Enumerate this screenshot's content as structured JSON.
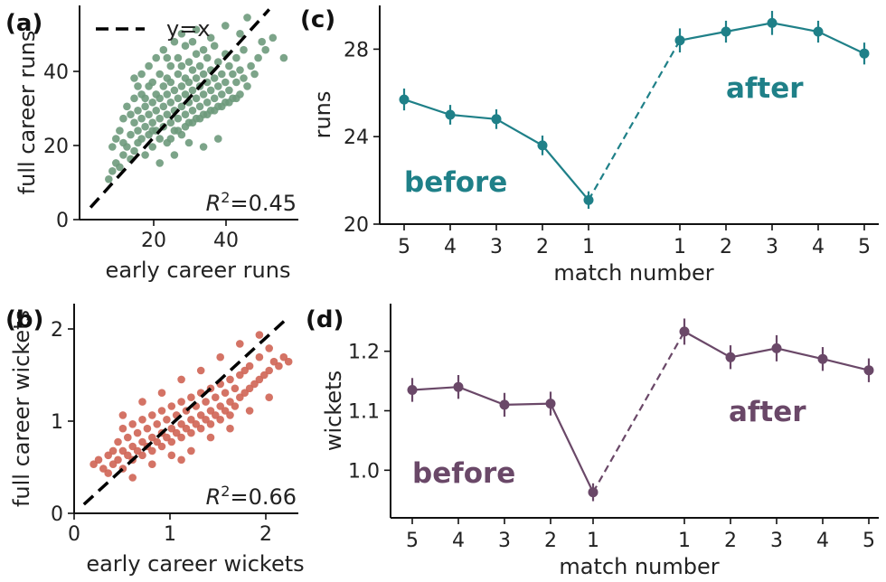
{
  "chart_data": [
    {
      "panel": "(a)",
      "type": "scatter",
      "xlabel": "early career runs",
      "ylabel": "full career runs",
      "xlim": [
        0,
        60
      ],
      "ylim": [
        0,
        53
      ],
      "xticks": [
        "20",
        "40"
      ],
      "yticks": [
        "0",
        "20",
        "40"
      ],
      "color": "#6e9a7c",
      "reference_line": {
        "label": "y=x",
        "style": "dashed",
        "color": "#000000",
        "from": [
          3,
          3
        ],
        "to": [
          52,
          52
        ]
      },
      "legend_position": "top-left",
      "annotation": {
        "prefix": "R",
        "sup": "2",
        "value": "=0.45"
      },
      "points": [
        [
          8,
          10
        ],
        [
          9,
          12
        ],
        [
          9,
          18
        ],
        [
          10,
          14
        ],
        [
          10,
          20
        ],
        [
          11,
          13
        ],
        [
          11,
          22
        ],
        [
          12,
          16
        ],
        [
          12,
          25
        ],
        [
          12,
          19
        ],
        [
          13,
          18
        ],
        [
          13,
          28
        ],
        [
          14,
          15
        ],
        [
          14,
          21
        ],
        [
          14,
          26
        ],
        [
          15,
          17
        ],
        [
          15,
          24
        ],
        [
          15,
          30
        ],
        [
          15,
          35
        ],
        [
          16,
          19
        ],
        [
          16,
          22
        ],
        [
          16,
          27
        ],
        [
          17,
          20
        ],
        [
          17,
          25
        ],
        [
          17,
          31
        ],
        [
          17,
          36
        ],
        [
          18,
          16
        ],
        [
          18,
          23
        ],
        [
          18,
          28
        ],
        [
          19,
          21
        ],
        [
          19,
          26
        ],
        [
          19,
          33
        ],
        [
          19,
          38
        ],
        [
          20,
          18
        ],
        [
          20,
          24
        ],
        [
          20,
          29
        ],
        [
          20,
          34
        ],
        [
          21,
          22
        ],
        [
          21,
          27
        ],
        [
          21,
          31
        ],
        [
          21,
          40
        ],
        [
          22,
          20
        ],
        [
          22,
          25
        ],
        [
          22,
          30
        ],
        [
          22,
          36
        ],
        [
          23,
          23
        ],
        [
          23,
          28
        ],
        [
          23,
          33
        ],
        [
          23,
          42
        ],
        [
          24,
          19
        ],
        [
          24,
          26
        ],
        [
          24,
          31
        ],
        [
          24,
          35
        ],
        [
          25,
          24
        ],
        [
          25,
          29
        ],
        [
          25,
          34
        ],
        [
          25,
          38
        ],
        [
          26,
          22
        ],
        [
          26,
          27
        ],
        [
          26,
          32
        ],
        [
          26,
          44
        ],
        [
          27,
          25
        ],
        [
          27,
          30
        ],
        [
          27,
          36
        ],
        [
          27,
          40
        ],
        [
          28,
          21
        ],
        [
          28,
          28
        ],
        [
          28,
          33
        ],
        [
          28,
          38
        ],
        [
          29,
          26
        ],
        [
          29,
          31
        ],
        [
          29,
          35
        ],
        [
          29,
          43
        ],
        [
          30,
          24
        ],
        [
          30,
          29
        ],
        [
          30,
          34
        ],
        [
          30,
          39
        ],
        [
          31,
          27
        ],
        [
          31,
          32
        ],
        [
          31,
          37
        ],
        [
          31,
          44
        ],
        [
          32,
          25
        ],
        [
          32,
          30
        ],
        [
          32,
          35
        ],
        [
          32,
          41
        ],
        [
          33,
          28
        ],
        [
          33,
          33
        ],
        [
          33,
          38
        ],
        [
          34,
          26
        ],
        [
          34,
          31
        ],
        [
          34,
          36
        ],
        [
          34,
          42
        ],
        [
          35,
          29
        ],
        [
          35,
          34
        ],
        [
          35,
          40
        ],
        [
          36,
          27
        ],
        [
          36,
          32
        ],
        [
          36,
          37
        ],
        [
          37,
          30
        ],
        [
          37,
          35
        ],
        [
          37,
          43
        ],
        [
          38,
          28
        ],
        [
          38,
          33
        ],
        [
          38,
          39
        ],
        [
          39,
          31
        ],
        [
          39,
          36
        ],
        [
          40,
          29
        ],
        [
          40,
          34
        ],
        [
          40,
          41
        ],
        [
          41,
          32
        ],
        [
          41,
          38
        ],
        [
          42,
          30
        ],
        [
          42,
          36
        ],
        [
          43,
          34
        ],
        [
          43,
          40
        ],
        [
          44,
          31
        ],
        [
          44,
          37
        ],
        [
          45,
          35
        ],
        [
          45,
          42
        ],
        [
          46,
          33
        ],
        [
          47,
          38
        ],
        [
          48,
          36
        ],
        [
          49,
          40
        ],
        [
          50,
          44
        ],
        [
          51,
          42
        ],
        [
          53,
          45
        ],
        [
          56,
          40
        ],
        [
          38,
          20
        ],
        [
          34,
          18
        ],
        [
          30,
          19
        ],
        [
          26,
          16
        ],
        [
          22,
          14
        ],
        [
          20,
          22
        ],
        [
          18,
          30
        ],
        [
          16,
          33
        ],
        [
          24,
          40
        ],
        [
          28,
          46
        ],
        [
          32,
          47
        ],
        [
          36,
          45
        ],
        [
          40,
          48
        ],
        [
          44,
          46
        ],
        [
          46,
          50
        ],
        [
          25,
          20
        ],
        [
          27,
          22
        ],
        [
          29,
          23
        ],
        [
          31,
          24
        ],
        [
          33,
          25
        ],
        [
          35,
          26
        ],
        [
          37,
          27
        ],
        [
          39,
          28
        ],
        [
          41,
          29
        ],
        [
          43,
          30
        ]
      ]
    },
    {
      "panel": "(b)",
      "type": "scatter",
      "xlabel": "early career wickets",
      "ylabel": "full career wickets",
      "xlim": [
        0,
        2.3
      ],
      "ylim": [
        0,
        2.35
      ],
      "xticks": [
        "0",
        "1",
        "2"
      ],
      "yticks": [
        "0",
        "1",
        "2"
      ],
      "color": "#cf6454",
      "reference_line": {
        "style": "dashed",
        "color": "#000000",
        "from": [
          0.1,
          0.1
        ],
        "to": [
          2.2,
          2.2
        ]
      },
      "annotation": {
        "prefix": "R",
        "sup": "2",
        "value": "=0.66"
      },
      "points": [
        [
          0.2,
          0.55
        ],
        [
          0.25,
          0.6
        ],
        [
          0.3,
          0.5
        ],
        [
          0.35,
          0.65
        ],
        [
          0.4,
          0.55
        ],
        [
          0.4,
          0.7
        ],
        [
          0.45,
          0.6
        ],
        [
          0.45,
          0.8
        ],
        [
          0.5,
          0.5
        ],
        [
          0.5,
          0.7
        ],
        [
          0.5,
          0.95
        ],
        [
          0.55,
          0.65
        ],
        [
          0.55,
          0.85
        ],
        [
          0.6,
          0.6
        ],
        [
          0.6,
          0.75
        ],
        [
          0.6,
          1.0
        ],
        [
          0.65,
          0.7
        ],
        [
          0.65,
          0.9
        ],
        [
          0.7,
          0.65
        ],
        [
          0.7,
          0.8
        ],
        [
          0.7,
          1.05
        ],
        [
          0.75,
          0.75
        ],
        [
          0.75,
          0.95
        ],
        [
          0.8,
          0.7
        ],
        [
          0.8,
          0.85
        ],
        [
          0.8,
          1.1
        ],
        [
          0.85,
          0.8
        ],
        [
          0.85,
          1.0
        ],
        [
          0.9,
          0.75
        ],
        [
          0.9,
          0.9
        ],
        [
          0.9,
          1.15
        ],
        [
          0.95,
          0.85
        ],
        [
          0.95,
          1.05
        ],
        [
          1.0,
          0.8
        ],
        [
          1.0,
          0.95
        ],
        [
          1.0,
          1.2
        ],
        [
          1.05,
          0.9
        ],
        [
          1.05,
          1.1
        ],
        [
          1.1,
          0.85
        ],
        [
          1.1,
          1.0
        ],
        [
          1.1,
          1.25
        ],
        [
          1.15,
          0.95
        ],
        [
          1.15,
          1.15
        ],
        [
          1.2,
          0.9
        ],
        [
          1.2,
          1.05
        ],
        [
          1.2,
          1.3
        ],
        [
          1.25,
          1.0
        ],
        [
          1.25,
          1.2
        ],
        [
          1.3,
          0.95
        ],
        [
          1.3,
          1.1
        ],
        [
          1.3,
          1.35
        ],
        [
          1.35,
          1.05
        ],
        [
          1.35,
          1.25
        ],
        [
          1.4,
          1.0
        ],
        [
          1.4,
          1.15
        ],
        [
          1.4,
          1.4
        ],
        [
          1.45,
          1.1
        ],
        [
          1.45,
          1.3
        ],
        [
          1.5,
          1.05
        ],
        [
          1.5,
          1.2
        ],
        [
          1.5,
          1.45
        ],
        [
          1.55,
          1.15
        ],
        [
          1.55,
          1.35
        ],
        [
          1.6,
          1.1
        ],
        [
          1.6,
          1.25
        ],
        [
          1.6,
          1.5
        ],
        [
          1.65,
          1.2
        ],
        [
          1.65,
          1.4
        ],
        [
          1.7,
          1.3
        ],
        [
          1.7,
          1.55
        ],
        [
          1.75,
          1.35
        ],
        [
          1.75,
          1.6
        ],
        [
          1.8,
          1.4
        ],
        [
          1.8,
          1.65
        ],
        [
          1.85,
          1.45
        ],
        [
          1.9,
          1.5
        ],
        [
          1.9,
          1.75
        ],
        [
          1.95,
          1.55
        ],
        [
          2.0,
          1.6
        ],
        [
          2.0,
          1.85
        ],
        [
          2.05,
          1.7
        ],
        [
          2.1,
          1.65
        ],
        [
          2.15,
          1.75
        ],
        [
          2.2,
          1.7
        ],
        [
          1.9,
          2.0
        ],
        [
          1.7,
          1.9
        ],
        [
          1.5,
          1.75
        ],
        [
          1.3,
          1.6
        ],
        [
          1.1,
          1.5
        ],
        [
          0.9,
          1.35
        ],
        [
          0.7,
          1.25
        ],
        [
          0.5,
          1.1
        ],
        [
          1.2,
          0.7
        ],
        [
          1.4,
          0.85
        ],
        [
          1.6,
          0.95
        ],
        [
          1.0,
          0.65
        ],
        [
          0.8,
          0.55
        ],
        [
          1.8,
          1.15
        ],
        [
          2.0,
          1.3
        ],
        [
          1.1,
          0.6
        ],
        [
          0.35,
          0.45
        ],
        [
          0.6,
          0.4
        ]
      ]
    },
    {
      "panel": "(c)",
      "type": "line",
      "xlabel": "match number",
      "ylabel": "runs",
      "ylim": [
        20,
        30
      ],
      "yticks": [
        "20",
        "24",
        "28"
      ],
      "color": "#1f8088",
      "before": {
        "label": "before",
        "categories": [
          "5",
          "4",
          "3",
          "2",
          "1"
        ],
        "values": [
          25.7,
          25.0,
          24.8,
          23.6,
          21.1
        ],
        "errors": [
          0.5,
          0.45,
          0.45,
          0.45,
          0.4
        ]
      },
      "after": {
        "label": "after",
        "categories": [
          "1",
          "2",
          "3",
          "4",
          "5"
        ],
        "values": [
          28.4,
          28.8,
          29.2,
          28.8,
          27.8
        ],
        "errors": [
          0.55,
          0.5,
          0.55,
          0.5,
          0.5
        ]
      },
      "connector": "dashed"
    },
    {
      "panel": "(d)",
      "type": "line",
      "xlabel": "match number",
      "ylabel": "wickets",
      "ylim": [
        0.92,
        1.28
      ],
      "yticks": [
        "1.0",
        "1.1",
        "1.2"
      ],
      "color": "#6a4868",
      "before": {
        "label": "before",
        "categories": [
          "5",
          "4",
          "3",
          "2",
          "1"
        ],
        "values": [
          1.135,
          1.14,
          1.11,
          1.112,
          0.963
        ],
        "errors": [
          0.02,
          0.02,
          0.02,
          0.02,
          0.015
        ]
      },
      "after": {
        "label": "after",
        "categories": [
          "1",
          "2",
          "3",
          "4",
          "5"
        ],
        "values": [
          1.233,
          1.19,
          1.205,
          1.187,
          1.168
        ],
        "errors": [
          0.022,
          0.02,
          0.022,
          0.02,
          0.02
        ]
      },
      "connector": "dashed"
    }
  ]
}
